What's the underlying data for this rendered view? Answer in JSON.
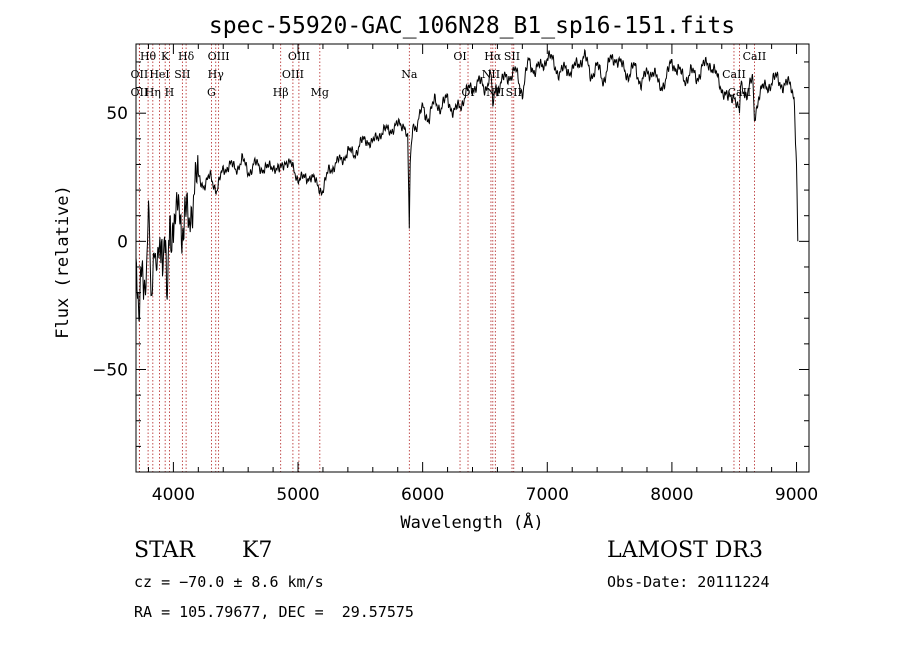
{
  "chart_data": {
    "type": "line",
    "title": "spec-55920-GAC_106N28_B1_sp16-151.fits",
    "xlabel": "Wavelength (Å)",
    "ylabel": "Flux (relative)",
    "xlim": [
      3700,
      9100
    ],
    "ylim": [
      -90,
      77
    ],
    "x_ticks": [
      4000,
      5000,
      6000,
      7000,
      8000,
      9000
    ],
    "y_ticks": [
      -50,
      0,
      50
    ],
    "line_color": "#000000",
    "marker_color": "#b22222",
    "series": [
      {
        "name": "flux",
        "x": [
          3700,
          3720,
          3740,
          3760,
          3780,
          3800,
          3820,
          3840,
          3860,
          3880,
          3900,
          3925,
          3950,
          3975,
          4000,
          4030,
          4060,
          4100,
          4150,
          4200,
          4250,
          4300,
          4350,
          4400,
          4450,
          4500,
          4550,
          4600,
          4650,
          4700,
          4750,
          4800,
          4850,
          4900,
          4950,
          5000,
          5050,
          5100,
          5150,
          5200,
          5250,
          5300,
          5350,
          5400,
          5450,
          5500,
          5550,
          5600,
          5650,
          5700,
          5750,
          5800,
          5850,
          5880,
          5893,
          5900,
          5920,
          5950,
          6000,
          6050,
          6100,
          6150,
          6200,
          6250,
          6300,
          6350,
          6400,
          6450,
          6500,
          6550,
          6563,
          6600,
          6650,
          6700,
          6750,
          6800,
          6850,
          6900,
          6950,
          7000,
          7050,
          7100,
          7150,
          7200,
          7250,
          7300,
          7350,
          7400,
          7450,
          7500,
          7550,
          7600,
          7650,
          7700,
          7750,
          7800,
          7850,
          7900,
          7950,
          8000,
          8050,
          8100,
          8150,
          8200,
          8250,
          8300,
          8350,
          8400,
          8450,
          8500,
          8542,
          8550,
          8600,
          8650,
          8662,
          8700,
          8750,
          8800,
          8850,
          8900,
          8950,
          8980,
          9000,
          9010
        ],
        "y": [
          -15,
          -30,
          -5,
          -25,
          -10,
          10,
          -20,
          -5,
          -15,
          5,
          -10,
          0,
          -15,
          5,
          0,
          10,
          5,
          8,
          15,
          25,
          22,
          25,
          20,
          28,
          30,
          28,
          32,
          27,
          30,
          29,
          28,
          30,
          27,
          32,
          29,
          25,
          24,
          26,
          22,
          20,
          28,
          30,
          32,
          35,
          34,
          38,
          40,
          38,
          42,
          43,
          44,
          45,
          46,
          42,
          5,
          30,
          46,
          45,
          52,
          48,
          55,
          52,
          56,
          50,
          53,
          58,
          60,
          62,
          60,
          65,
          55,
          60,
          63,
          65,
          66,
          58,
          70,
          67,
          68,
          72,
          70,
          65,
          68,
          66,
          70,
          72,
          65,
          68,
          63,
          70,
          72,
          68,
          65,
          68,
          62,
          65,
          67,
          60,
          63,
          70,
          67,
          63,
          66,
          64,
          68,
          70,
          65,
          60,
          55,
          58,
          50,
          60,
          58,
          63,
          48,
          58,
          60,
          62,
          64,
          60,
          62,
          58,
          30,
          0
        ]
      }
    ],
    "lines": [
      {
        "name": "Hθ",
        "wl": 3797,
        "row": 1
      },
      {
        "name": "OII",
        "wl": 3727,
        "row": 2
      },
      {
        "name": "OII",
        "wl": 3727,
        "row": 3
      },
      {
        "name": "Hη",
        "wl": 3835,
        "row": 3
      },
      {
        "name": "HeI",
        "wl": 3889,
        "row": 2
      },
      {
        "name": "K",
        "wl": 3934,
        "row": 1
      },
      {
        "name": "H",
        "wl": 3968,
        "row": 3
      },
      {
        "name": "Hδ",
        "wl": 4102,
        "row": 1
      },
      {
        "name": "SII",
        "wl": 4072,
        "row": 2
      },
      {
        "name": "OIII",
        "wl": 4363,
        "row": 1
      },
      {
        "name": "Hγ",
        "wl": 4340,
        "row": 2
      },
      {
        "name": "G",
        "wl": 4305,
        "row": 3
      },
      {
        "name": "OIII",
        "wl": 5007,
        "row": 1
      },
      {
        "name": "OIII",
        "wl": 4959,
        "row": 2
      },
      {
        "name": "Hβ",
        "wl": 4861,
        "row": 3
      },
      {
        "name": "Mg",
        "wl": 5175,
        "row": 3
      },
      {
        "name": "Na",
        "wl": 5893,
        "row": 2
      },
      {
        "name": "OI",
        "wl": 6300,
        "row": 1
      },
      {
        "name": "OI",
        "wl": 6364,
        "row": 3
      },
      {
        "name": "NII",
        "wl": 6548,
        "row": 2
      },
      {
        "name": "Hα",
        "wl": 6563,
        "row": 1
      },
      {
        "name": "NII",
        "wl": 6583,
        "row": 3
      },
      {
        "name": "SII",
        "wl": 6717,
        "row": 1
      },
      {
        "name": "SII",
        "wl": 6731,
        "row": 3
      },
      {
        "name": "CaII",
        "wl": 8662,
        "row": 1
      },
      {
        "name": "CaII",
        "wl": 8498,
        "row": 2
      },
      {
        "name": "CaII",
        "wl": 8542,
        "row": 3
      }
    ]
  },
  "info": {
    "class": "STAR",
    "subclass": "K7",
    "survey": "LAMOST DR3",
    "cz": "cz = −70.0 ± 8.6 km/s",
    "obs_date": "Obs-Date: 20111224",
    "coords": "RA = 105.79677, DEC =  29.57575"
  }
}
